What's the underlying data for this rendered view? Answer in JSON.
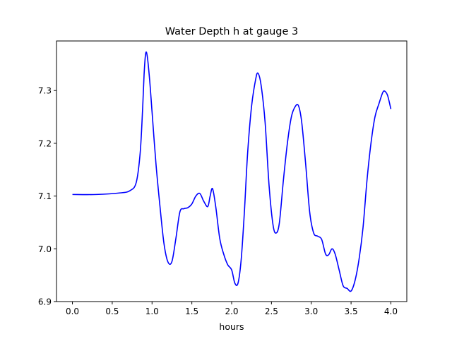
{
  "chart_data": {
    "type": "line",
    "title": "Water Depth h at gauge 3",
    "xlabel": "hours",
    "ylabel": "",
    "xlim": [
      -0.2,
      4.2
    ],
    "ylim": [
      6.9,
      7.394
    ],
    "xticks": [
      0.0,
      0.5,
      1.0,
      1.5,
      2.0,
      2.5,
      3.0,
      3.5,
      4.0
    ],
    "xtick_labels": [
      "0.0",
      "0.5",
      "1.0",
      "1.5",
      "2.0",
      "2.5",
      "3.0",
      "3.5",
      "4.0"
    ],
    "yticks": [
      6.9,
      7.0,
      7.1,
      7.2,
      7.3
    ],
    "ytick_labels": [
      "6.9",
      "7.0",
      "7.1",
      "7.2",
      "7.3"
    ],
    "grid": false,
    "series": [
      {
        "color": "#0000ff",
        "x": [
          0.0,
          0.3,
          0.6,
          0.72,
          0.8,
          0.85,
          0.88,
          0.9,
          0.92,
          0.94,
          0.97,
          1.0,
          1.05,
          1.1,
          1.15,
          1.2,
          1.25,
          1.3,
          1.35,
          1.4,
          1.45,
          1.5,
          1.55,
          1.6,
          1.65,
          1.7,
          1.73,
          1.76,
          1.8,
          1.85,
          1.9,
          1.95,
          2.0,
          2.04,
          2.08,
          2.12,
          2.16,
          2.2,
          2.25,
          2.3,
          2.33,
          2.37,
          2.42,
          2.47,
          2.52,
          2.56,
          2.6,
          2.65,
          2.7,
          2.75,
          2.8,
          2.84,
          2.88,
          2.93,
          2.98,
          3.03,
          3.08,
          3.13,
          3.18,
          3.22,
          3.26,
          3.3,
          3.35,
          3.4,
          3.45,
          3.5,
          3.55,
          3.6,
          3.65,
          3.7,
          3.75,
          3.8,
          3.85,
          3.9,
          3.93,
          3.96,
          4.0
        ],
        "y": [
          7.103,
          7.103,
          7.106,
          7.11,
          7.125,
          7.18,
          7.26,
          7.33,
          7.37,
          7.365,
          7.32,
          7.26,
          7.16,
          7.08,
          7.01,
          6.975,
          6.976,
          7.02,
          7.07,
          7.076,
          7.078,
          7.085,
          7.1,
          7.105,
          7.09,
          7.08,
          7.1,
          7.114,
          7.08,
          7.02,
          6.99,
          6.97,
          6.96,
          6.935,
          6.935,
          6.98,
          7.07,
          7.18,
          7.27,
          7.32,
          7.333,
          7.31,
          7.24,
          7.12,
          7.045,
          7.03,
          7.05,
          7.13,
          7.2,
          7.25,
          7.27,
          7.271,
          7.24,
          7.16,
          7.07,
          7.03,
          7.024,
          7.018,
          6.99,
          6.989,
          7.0,
          6.99,
          6.96,
          6.93,
          6.925,
          6.92,
          6.94,
          6.98,
          7.04,
          7.13,
          7.2,
          7.25,
          7.275,
          7.297,
          7.298,
          7.29,
          7.265
        ]
      }
    ]
  }
}
